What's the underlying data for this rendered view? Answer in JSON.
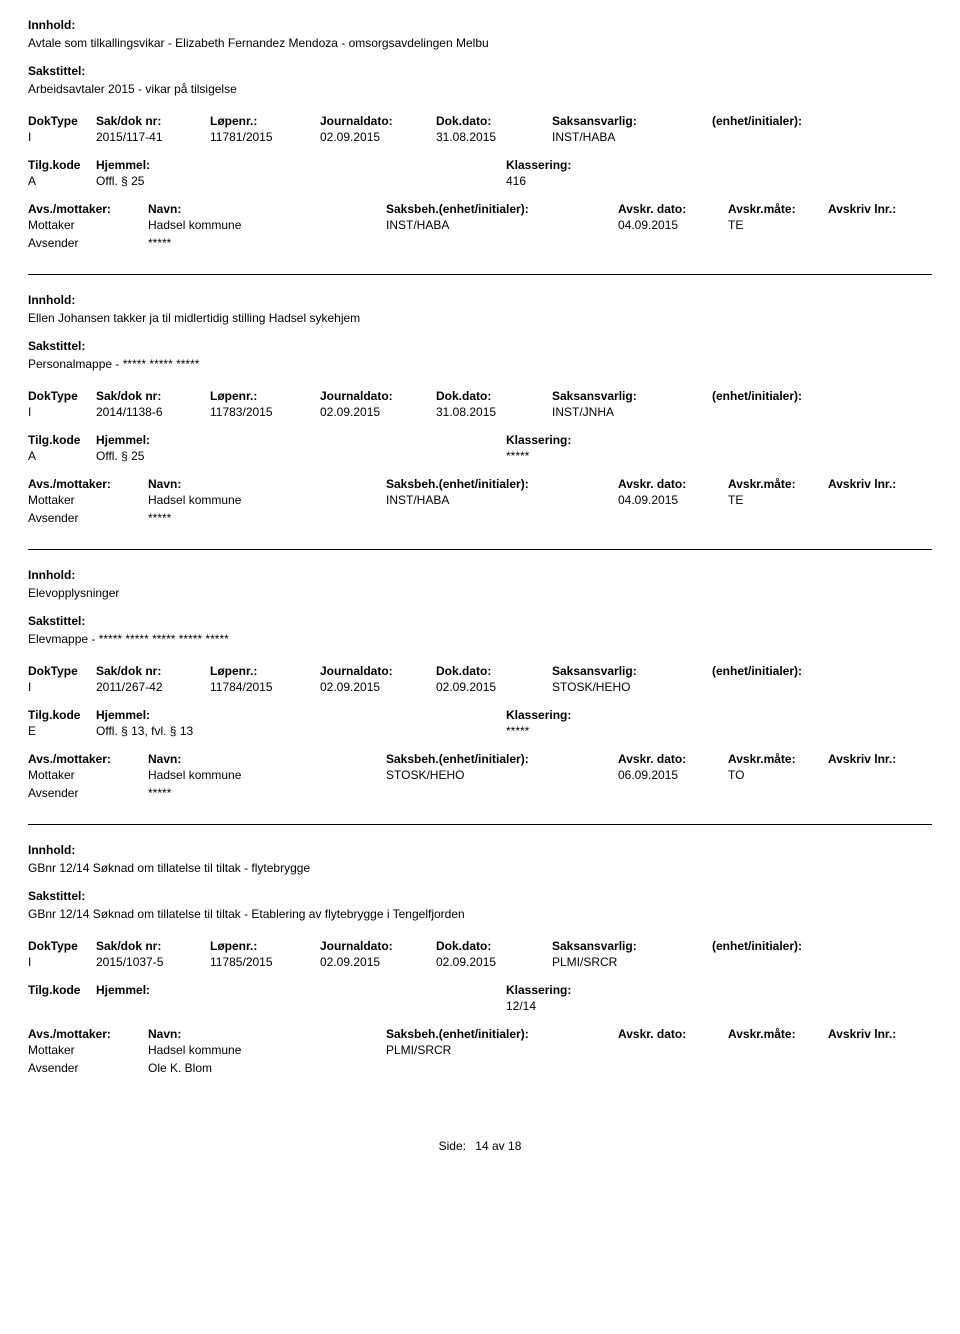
{
  "labels": {
    "innhold": "Innhold:",
    "sakstittel": "Sakstittel:",
    "doktype": "DokType",
    "sakdoknr": "Sak/dok nr:",
    "lopenr": "Løpenr.:",
    "journaldato": "Journaldato:",
    "dokdato": "Dok.dato:",
    "saksansvarlig": "Saksansvarlig:",
    "enhetinitialer": "(enhet/initialer):",
    "tilgkode": "Tilg.kode",
    "hjemmel": "Hjemmel:",
    "klassering": "Klassering:",
    "avsmottaker": "Avs./mottaker:",
    "navn": "Navn:",
    "saksbeh": "Saksbeh.(enhet/initialer):",
    "avskrdato": "Avskr. dato:",
    "avskrmate": "Avskr.måte:",
    "avskrivlnr": "Avskriv lnr.:",
    "mottaker": "Mottaker",
    "avsender": "Avsender"
  },
  "records": [
    {
      "innhold": "Avtale som tilkallingsvikar - Elizabeth Fernandez Mendoza - omsorgsavdelingen Melbu",
      "sakstittel": "Arbeidsavtaler 2015 - vikar på tilsigelse",
      "doktype": "I",
      "sakdoknr": "2015/117-41",
      "lopenr": "11781/2015",
      "journaldato": "02.09.2015",
      "dokdato": "31.08.2015",
      "saksansvarlig": "INST/HABA",
      "enhet": "",
      "tilgkode": "A",
      "hjemmel": "Offl. § 25",
      "klassering": "416",
      "parties": [
        {
          "role": "Mottaker",
          "navn": "Hadsel kommune",
          "saksbeh": "INST/HABA",
          "avskrdato": "04.09.2015",
          "avskrmate": "TE",
          "avskrlnr": ""
        },
        {
          "role": "Avsender",
          "navn": "*****",
          "saksbeh": "",
          "avskrdato": "",
          "avskrmate": "",
          "avskrlnr": ""
        }
      ]
    },
    {
      "innhold": "Ellen Johansen takker ja til midlertidig stilling Hadsel sykehjem",
      "sakstittel": "Personalmappe - ***** ***** *****",
      "doktype": "I",
      "sakdoknr": "2014/1138-6",
      "lopenr": "11783/2015",
      "journaldato": "02.09.2015",
      "dokdato": "31.08.2015",
      "saksansvarlig": "INST/JNHA",
      "enhet": "",
      "tilgkode": "A",
      "hjemmel": "Offl. § 25",
      "klassering": "*****",
      "parties": [
        {
          "role": "Mottaker",
          "navn": "Hadsel kommune",
          "saksbeh": "INST/HABA",
          "avskrdato": "04.09.2015",
          "avskrmate": "TE",
          "avskrlnr": ""
        },
        {
          "role": "Avsender",
          "navn": "*****",
          "saksbeh": "",
          "avskrdato": "",
          "avskrmate": "",
          "avskrlnr": ""
        }
      ]
    },
    {
      "innhold": "Elevopplysninger",
      "sakstittel": "Elevmappe - ***** ***** ***** ***** *****",
      "doktype": "I",
      "sakdoknr": "2011/267-42",
      "lopenr": "11784/2015",
      "journaldato": "02.09.2015",
      "dokdato": "02.09.2015",
      "saksansvarlig": "STOSK/HEHO",
      "enhet": "",
      "tilgkode": "E",
      "hjemmel": "Offl. § 13, fvl. § 13",
      "klassering": "*****",
      "parties": [
        {
          "role": "Mottaker",
          "navn": "Hadsel kommune",
          "saksbeh": "STOSK/HEHO",
          "avskrdato": "06.09.2015",
          "avskrmate": "TO",
          "avskrlnr": ""
        },
        {
          "role": "Avsender",
          "navn": "*****",
          "saksbeh": "",
          "avskrdato": "",
          "avskrmate": "",
          "avskrlnr": ""
        }
      ]
    },
    {
      "innhold": "GBnr 12/14 Søknad om tillatelse til tiltak - flytebrygge",
      "sakstittel": "GBnr 12/14 Søknad om tillatelse til tiltak - Etablering av flytebrygge i Tengelfjorden",
      "doktype": "I",
      "sakdoknr": "2015/1037-5",
      "lopenr": "11785/2015",
      "journaldato": "02.09.2015",
      "dokdato": "02.09.2015",
      "saksansvarlig": "PLMI/SRCR",
      "enhet": "",
      "tilgkode": "",
      "hjemmel": "",
      "klassering": "12/14",
      "parties": [
        {
          "role": "Mottaker",
          "navn": "Hadsel kommune",
          "saksbeh": "PLMI/SRCR",
          "avskrdato": "",
          "avskrmate": "",
          "avskrlnr": ""
        },
        {
          "role": "Avsender",
          "navn": "Ole K. Blom",
          "saksbeh": "",
          "avskrdato": "",
          "avskrmate": "",
          "avskrlnr": ""
        }
      ]
    }
  ],
  "footer": {
    "side": "Side:",
    "page": "14",
    "av": "av",
    "total": "18"
  }
}
